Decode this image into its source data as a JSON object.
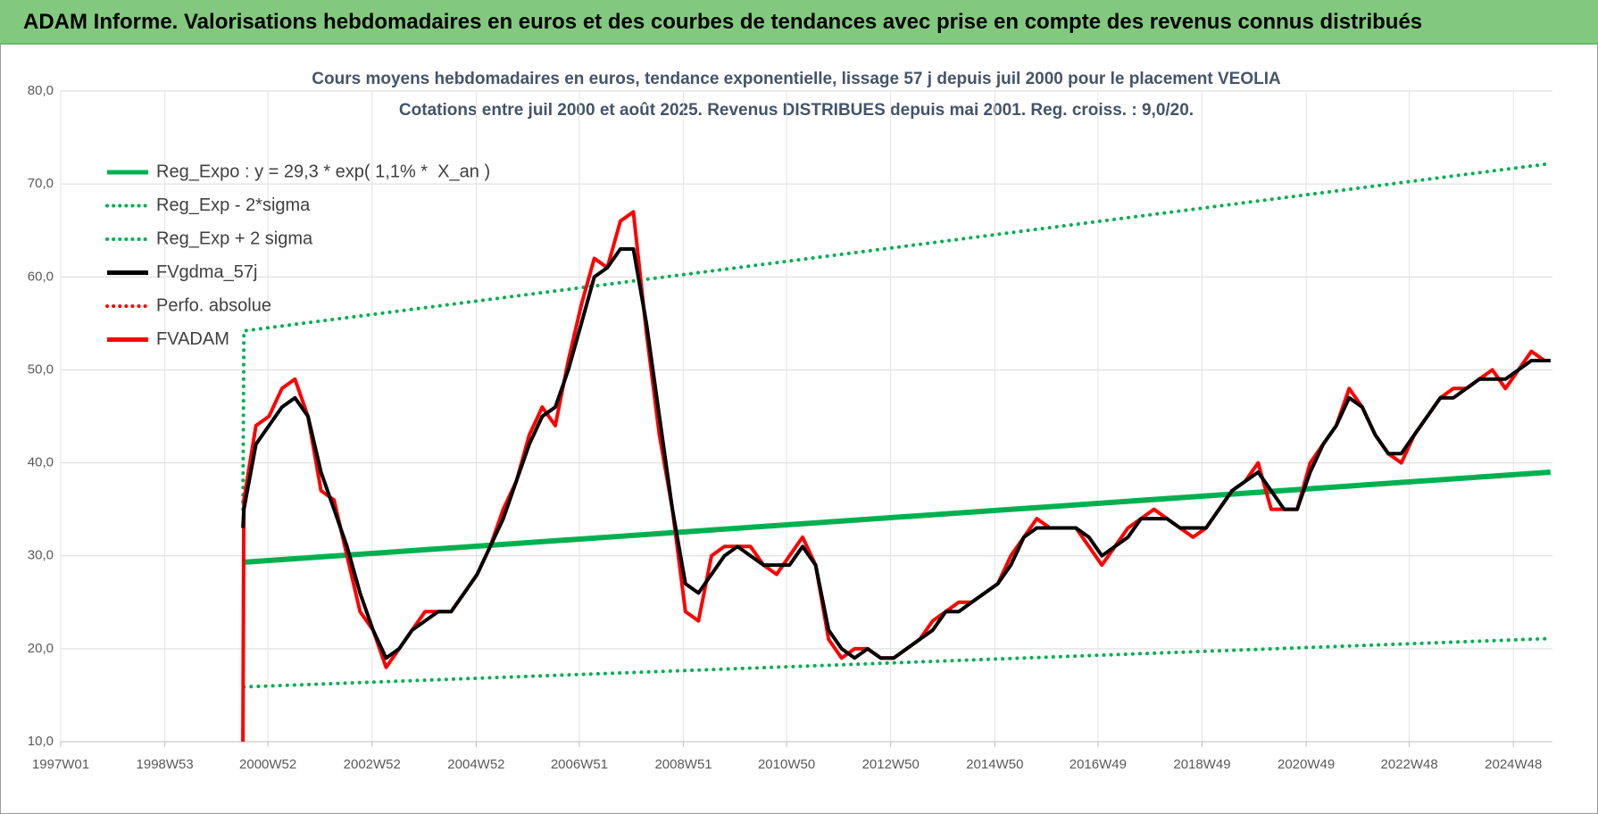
{
  "header": {
    "title": "ADAM Informe. Valorisations hebdomadaires en euros et des courbes de tendances avec prise en compte des revenus connus distribués"
  },
  "chart_data": {
    "type": "line",
    "title": "Cours moyens hebdomadaires en euros, tendance exponentielle, lissage 57 j depuis juil 2000 pour le placement VEOLIA",
    "subtitle": "Cotations entre juil 2000 et août 2025. Revenus DISTRIBUES depuis mai 2001. Reg. croiss. : 9,0/20.",
    "xlim": [
      "1997W01",
      "2025W35"
    ],
    "xticks": [
      "1997W01",
      "1998W53",
      "2000W52",
      "2002W52",
      "2004W52",
      "2006W51",
      "2008W51",
      "2010W50",
      "2012W50",
      "2014W50",
      "2016W49",
      "2018W49",
      "2020W49",
      "2022W48",
      "2024W48"
    ],
    "ylim": [
      10,
      80
    ],
    "yticks": [
      {
        "value": 10,
        "label": "10,0"
      },
      {
        "value": 20,
        "label": "20,0"
      },
      {
        "value": 30,
        "label": "30,0"
      },
      {
        "value": 40,
        "label": "40,0"
      },
      {
        "value": 50,
        "label": "50,0"
      },
      {
        "value": 60,
        "label": "60,0"
      },
      {
        "value": 70,
        "label": "70,0"
      },
      {
        "value": 80,
        "label": "80,0"
      }
    ],
    "grid": true,
    "series": [
      {
        "name": "Reg_Expo : y = 29,3 * exp( 1,1% *  X_an )",
        "color": "#00b050",
        "style": "solid",
        "width": 6,
        "x": [
          "2000W27",
          "2025W33"
        ],
        "values": [
          29.3,
          39.0
        ]
      },
      {
        "name": "Reg_Exp - 2*sigma",
        "color": "#00b050",
        "style": "dotted",
        "width": 4,
        "x": [
          "2000W28",
          "2025W33"
        ],
        "values": [
          15.9,
          21.1
        ]
      },
      {
        "name": "Reg_Exp + 2 sigma",
        "color": "#00b050",
        "style": "dotted",
        "width": 4,
        "x": [
          "2000W27",
          "2000W28",
          "2025W33"
        ],
        "values": [
          35,
          54.2,
          72.2
        ]
      },
      {
        "name": "FVgdma_57j",
        "color": "#000000",
        "style": "solid",
        "width": 4,
        "x": [
          "2000W27",
          "2000W28",
          "2000W40",
          "2001W01",
          "2001W14",
          "2001W27",
          "2001W40",
          "2002W01",
          "2002W14",
          "2002W27",
          "2002W40",
          "2003W01",
          "2003W14",
          "2003W27",
          "2003W40",
          "2004W01",
          "2004W14",
          "2004W27",
          "2004W40",
          "2005W01",
          "2005W14",
          "2005W27",
          "2005W40",
          "2006W01",
          "2006W14",
          "2006W27",
          "2006W40",
          "2007W01",
          "2007W14",
          "2007W27",
          "2007W40",
          "2008W01",
          "2008W14",
          "2008W27",
          "2008W40",
          "2009W01",
          "2009W14",
          "2009W27",
          "2009W40",
          "2010W01",
          "2010W14",
          "2010W27",
          "2010W40",
          "2011W01",
          "2011W14",
          "2011W27",
          "2011W40",
          "2012W01",
          "2012W14",
          "2012W27",
          "2012W40",
          "2013W01",
          "2013W14",
          "2013W27",
          "2013W40",
          "2014W01",
          "2014W14",
          "2014W27",
          "2014W40",
          "2015W01",
          "2015W14",
          "2015W27",
          "2015W40",
          "2016W01",
          "2016W14",
          "2016W27",
          "2016W40",
          "2017W01",
          "2017W14",
          "2017W27",
          "2017W40",
          "2018W01",
          "2018W14",
          "2018W27",
          "2018W40",
          "2019W01",
          "2019W14",
          "2019W27",
          "2019W40",
          "2020W01",
          "2020W14",
          "2020W27",
          "2020W40",
          "2021W01",
          "2021W14",
          "2021W27",
          "2021W40",
          "2022W01",
          "2022W14",
          "2022W27",
          "2022W40",
          "2023W01",
          "2023W14",
          "2023W27",
          "2023W40",
          "2024W01",
          "2024W14",
          "2024W27",
          "2024W40",
          "2025W01",
          "2025W14",
          "2025W27",
          "2025W33"
        ],
        "values": [
          33,
          35,
          42,
          44,
          46,
          47,
          45,
          39,
          35,
          31,
          26,
          22,
          19,
          20,
          22,
          23,
          24,
          24,
          26,
          28,
          31,
          34,
          38,
          42,
          45,
          46,
          50,
          55,
          60,
          61,
          63,
          63,
          55,
          45,
          35,
          27,
          26,
          28,
          30,
          31,
          30,
          29,
          29,
          29,
          31,
          29,
          22,
          20,
          19,
          20,
          19,
          19,
          20,
          21,
          22,
          24,
          24,
          25,
          26,
          27,
          29,
          32,
          33,
          33,
          33,
          33,
          32,
          30,
          31,
          32,
          34,
          34,
          34,
          33,
          33,
          33,
          35,
          37,
          38,
          39,
          37,
          35,
          35,
          39,
          42,
          44,
          47,
          46,
          43,
          41,
          41,
          43,
          45,
          47,
          47,
          48,
          49,
          49,
          49,
          50,
          51,
          51,
          51
        ]
      },
      {
        "name": "Perfo. absolue",
        "color": "#ff0000",
        "style": "dotted",
        "width": 3,
        "x": [],
        "values": []
      },
      {
        "name": "FVADAM",
        "color": "#ff0000",
        "style": "solid",
        "width": 4,
        "x": [
          "2000W27",
          "2000W28",
          "2000W40",
          "2001W01",
          "2001W14",
          "2001W27",
          "2001W40",
          "2002W01",
          "2002W14",
          "2002W27",
          "2002W40",
          "2003W01",
          "2003W14",
          "2003W27",
          "2003W40",
          "2004W01",
          "2004W14",
          "2004W27",
          "2004W40",
          "2005W01",
          "2005W14",
          "2005W27",
          "2005W40",
          "2006W01",
          "2006W14",
          "2006W27",
          "2006W40",
          "2007W01",
          "2007W14",
          "2007W27",
          "2007W40",
          "2008W01",
          "2008W14",
          "2008W27",
          "2008W40",
          "2009W01",
          "2009W14",
          "2009W27",
          "2009W40",
          "2010W01",
          "2010W14",
          "2010W27",
          "2010W40",
          "2011W01",
          "2011W14",
          "2011W27",
          "2011W40",
          "2012W01",
          "2012W14",
          "2012W27",
          "2012W40",
          "2013W01",
          "2013W14",
          "2013W27",
          "2013W40",
          "2014W01",
          "2014W14",
          "2014W27",
          "2014W40",
          "2015W01",
          "2015W14",
          "2015W27",
          "2015W40",
          "2016W01",
          "2016W14",
          "2016W27",
          "2016W40",
          "2017W01",
          "2017W14",
          "2017W27",
          "2017W40",
          "2018W01",
          "2018W14",
          "2018W27",
          "2018W40",
          "2019W01",
          "2019W14",
          "2019W27",
          "2019W40",
          "2020W01",
          "2020W14",
          "2020W27",
          "2020W40",
          "2021W01",
          "2021W14",
          "2021W27",
          "2021W40",
          "2022W01",
          "2022W14",
          "2022W27",
          "2022W40",
          "2023W01",
          "2023W14",
          "2023W27",
          "2023W40",
          "2024W01",
          "2024W14",
          "2024W27",
          "2024W40",
          "2025W01",
          "2025W14",
          "2025W27",
          "2025W33"
        ],
        "values": [
          10,
          36,
          44,
          45,
          48,
          49,
          45,
          37,
          36,
          30,
          24,
          22,
          18,
          20,
          22,
          24,
          24,
          24,
          26,
          28,
          31,
          35,
          38,
          43,
          46,
          44,
          51,
          57,
          62,
          61,
          66,
          67,
          54,
          43,
          35,
          24,
          23,
          30,
          31,
          31,
          31,
          29,
          28,
          30,
          32,
          29,
          21,
          19,
          20,
          20,
          19,
          19,
          20,
          21,
          23,
          24,
          25,
          25,
          26,
          27,
          30,
          32,
          34,
          33,
          33,
          33,
          31,
          29,
          31,
          33,
          34,
          35,
          34,
          33,
          32,
          33,
          35,
          37,
          38,
          40,
          35,
          35,
          35,
          40,
          42,
          44,
          48,
          46,
          43,
          41,
          40,
          43,
          45,
          47,
          48,
          48,
          49,
          50,
          48,
          50,
          52,
          51,
          51
        ]
      }
    ]
  }
}
